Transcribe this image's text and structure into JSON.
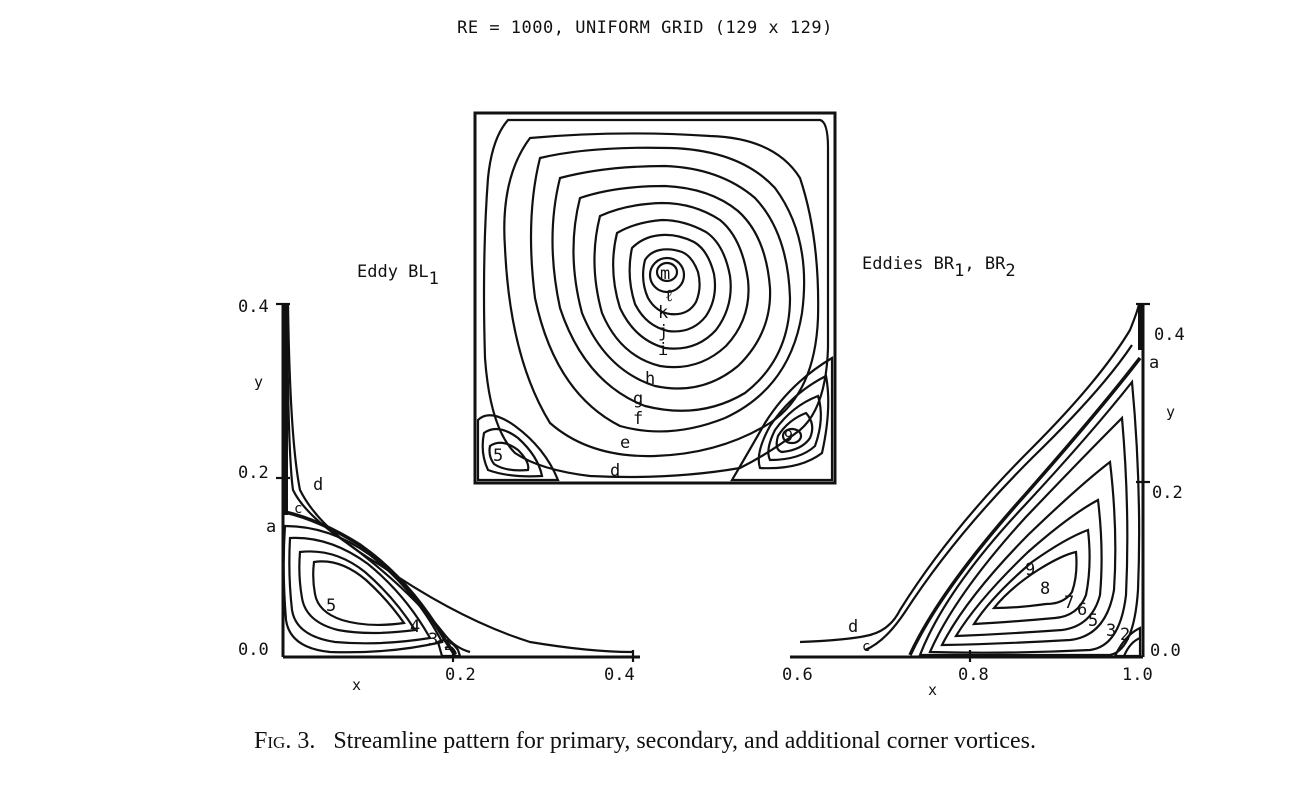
{
  "header": {
    "title": "RE = 1000, UNIFORM GRID (129 x 129)"
  },
  "labels": {
    "eddy_bl_main": "Eddy BL",
    "eddy_bl_sub": "1",
    "eddy_br_main": "Eddies BR",
    "eddy_br_sub1": "1",
    "eddy_br_sep": ", BR",
    "eddy_br_sub2": "2"
  },
  "center_panel": {
    "contour_labels": [
      "m",
      "ℓ",
      "k",
      "j",
      "i",
      "h",
      "g",
      "f",
      "e",
      "d",
      "5",
      "9"
    ]
  },
  "left_panel": {
    "y_ticks": [
      "0.4",
      "0.2",
      "0.0"
    ],
    "x_ticks": [
      "0.2",
      "0.4"
    ],
    "x_axis_label": "x",
    "y_axis_label": "y",
    "contour_labels": [
      "d",
      "c",
      "a",
      "5",
      "4",
      "3",
      "2"
    ]
  },
  "right_panel": {
    "y_ticks": [
      "0.4",
      "0.2",
      "0.0"
    ],
    "x_ticks": [
      "0.6",
      "0.8",
      "1.0"
    ],
    "x_axis_label": "x",
    "y_axis_label": "y",
    "contour_labels": [
      "a",
      "d",
      "c",
      "9",
      "8",
      "7",
      "6",
      "5",
      "3",
      "2"
    ]
  },
  "caption": {
    "fig": "Fig. 3.",
    "text": "Streamline pattern for primary, secondary, and additional corner vortices."
  }
}
